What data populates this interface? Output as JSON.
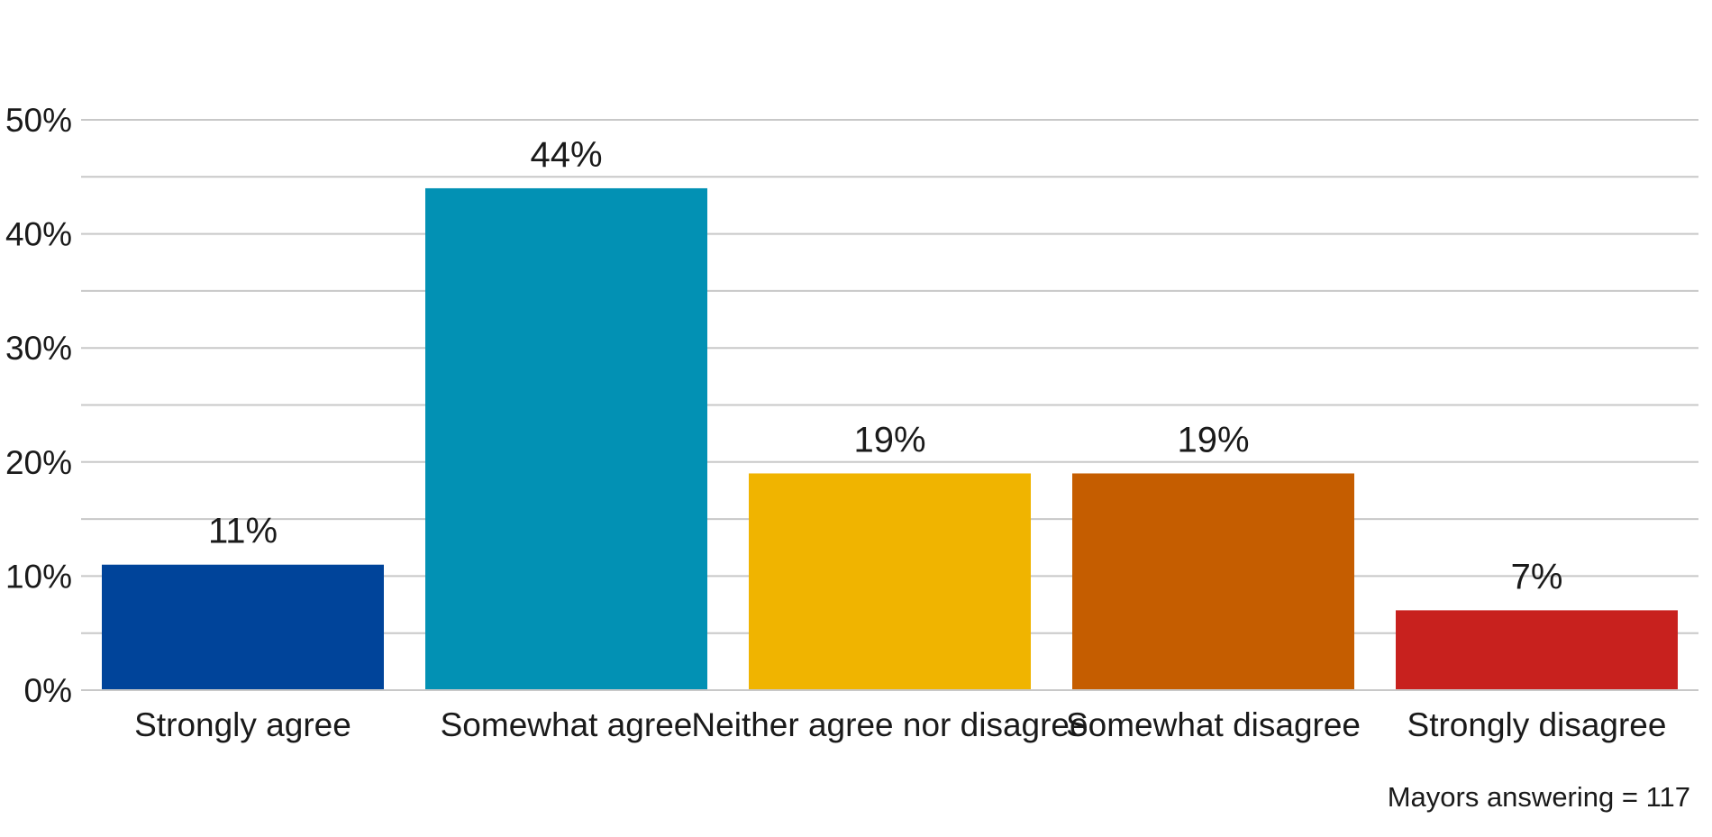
{
  "chart_data": {
    "type": "bar",
    "categories": [
      "Strongly agree",
      "Somewhat agree",
      "Neither agree nor disagree",
      "Somewhat disagree",
      "Strongly disagree"
    ],
    "values": [
      11,
      44,
      19,
      19,
      7
    ],
    "data_labels": [
      "11%",
      "44%",
      "19%",
      "19%",
      "7%"
    ],
    "colors": [
      "#00449a",
      "#0291b4",
      "#f0b400",
      "#c55d00",
      "#c8211e"
    ],
    "title": "",
    "xlabel": "",
    "ylabel": "",
    "ylim": [
      0,
      50
    ],
    "yticks": [
      0,
      10,
      20,
      30,
      40,
      50
    ],
    "ytick_labels": [
      "0%",
      "10%",
      "20%",
      "30%",
      "40%",
      "50%"
    ],
    "minor_gridlines": [
      5,
      15,
      25,
      35,
      45
    ],
    "grid": true,
    "gridline_color": "#c8c8c8",
    "legend": "none"
  },
  "note": "Mayors answering = 117"
}
